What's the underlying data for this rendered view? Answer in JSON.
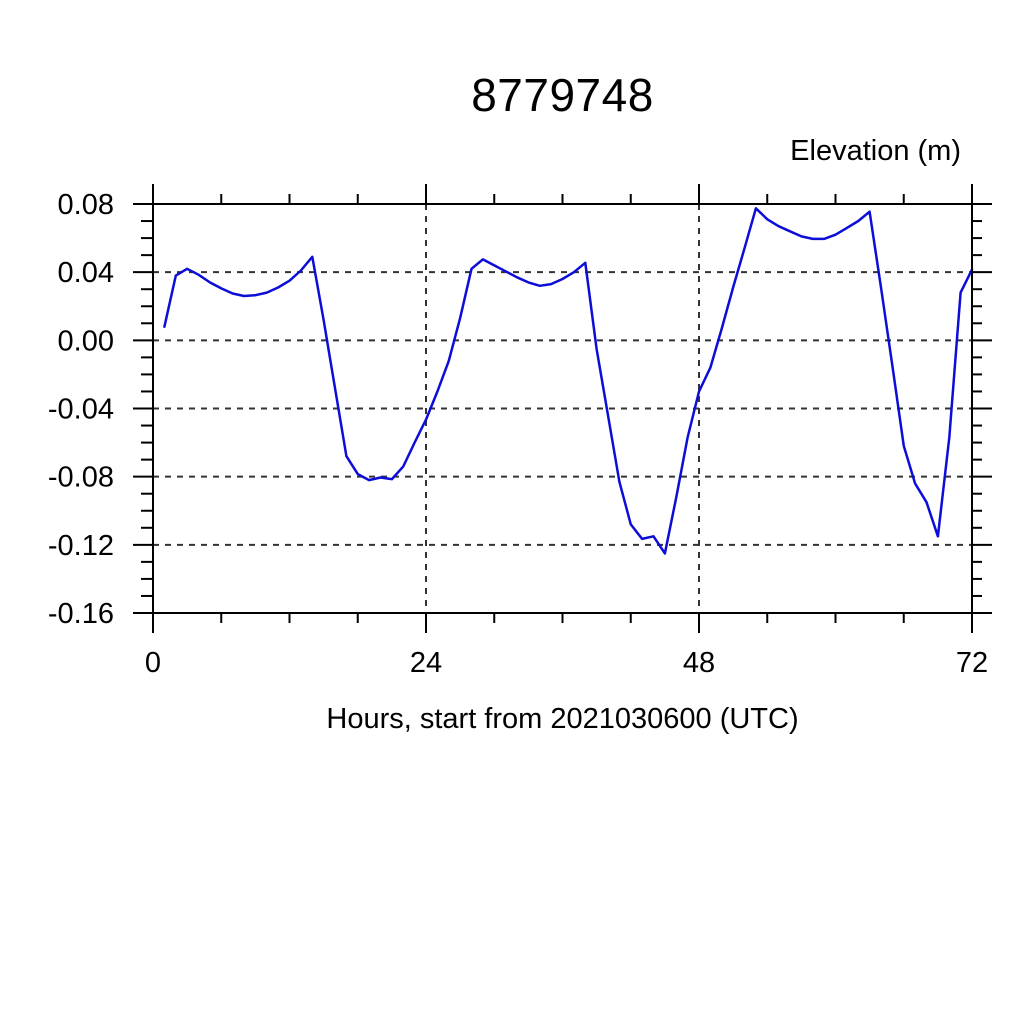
{
  "page": {
    "background_color": "#ffffff",
    "text_color": "#000000"
  },
  "chart_data": {
    "type": "line",
    "title": "8779748",
    "ylabel": "Elevation (m)",
    "ylabel_position": "top-right",
    "xlabel": "Hours, start from 2021030600 (UTC)",
    "xlim": [
      0,
      72
    ],
    "ylim": [
      -0.16,
      0.08
    ],
    "xticks": [
      0,
      24,
      48,
      72
    ],
    "xtick_labels": [
      "0",
      "24",
      "48",
      "72"
    ],
    "yticks": [
      0.08,
      0.04,
      0.0,
      -0.04,
      -0.08,
      -0.12,
      -0.16
    ],
    "ytick_labels": [
      "0.08",
      "0.04",
      "0.00",
      "-0.04",
      "-0.08",
      "-0.12",
      "-0.16"
    ],
    "x_minor_step": 6,
    "y_minor_step": 0.01,
    "grid": true,
    "grid_style": "dashed",
    "grid_color": "#333333",
    "frame_color": "#000000",
    "line_color": "#0d0dd8",
    "series": [
      {
        "name": "elevation",
        "x": [
          1,
          2,
          3,
          4,
          5,
          6,
          7,
          8,
          9,
          10,
          11,
          12,
          13,
          14,
          15,
          16,
          17,
          18,
          19,
          20,
          21,
          22,
          23,
          24,
          25,
          26,
          27,
          28,
          29,
          30,
          31,
          32,
          33,
          34,
          35,
          36,
          37,
          38,
          39,
          40,
          41,
          42,
          43,
          44,
          45,
          46,
          47,
          48,
          49,
          50,
          51,
          52,
          53,
          54,
          55,
          56,
          57,
          58,
          59,
          60,
          61,
          62,
          63,
          64,
          65,
          66,
          67,
          68,
          69,
          70,
          71,
          72
        ],
        "y": [
          0.008,
          0.038,
          0.042,
          0.0385,
          0.034,
          0.0305,
          0.0275,
          0.026,
          0.0265,
          0.028,
          0.031,
          0.035,
          0.041,
          0.049,
          0.012,
          -0.028,
          -0.068,
          -0.0785,
          -0.082,
          -0.0805,
          -0.0815,
          -0.074,
          -0.06,
          -0.0465,
          -0.03,
          -0.012,
          0.013,
          0.042,
          0.0475,
          0.044,
          0.0405,
          0.037,
          0.034,
          0.032,
          0.033,
          0.036,
          0.04,
          0.0455,
          -0.005,
          -0.044,
          -0.083,
          -0.108,
          -0.1165,
          -0.115,
          -0.125,
          -0.092,
          -0.057,
          -0.03,
          -0.016,
          0.007,
          0.031,
          0.054,
          0.0775,
          0.071,
          0.067,
          0.064,
          0.061,
          0.0595,
          0.0595,
          0.062,
          0.066,
          0.07,
          0.0755,
          0.031,
          -0.015,
          -0.062,
          -0.084,
          -0.095,
          -0.115,
          -0.057,
          0.028,
          0.0415
        ]
      }
    ]
  }
}
